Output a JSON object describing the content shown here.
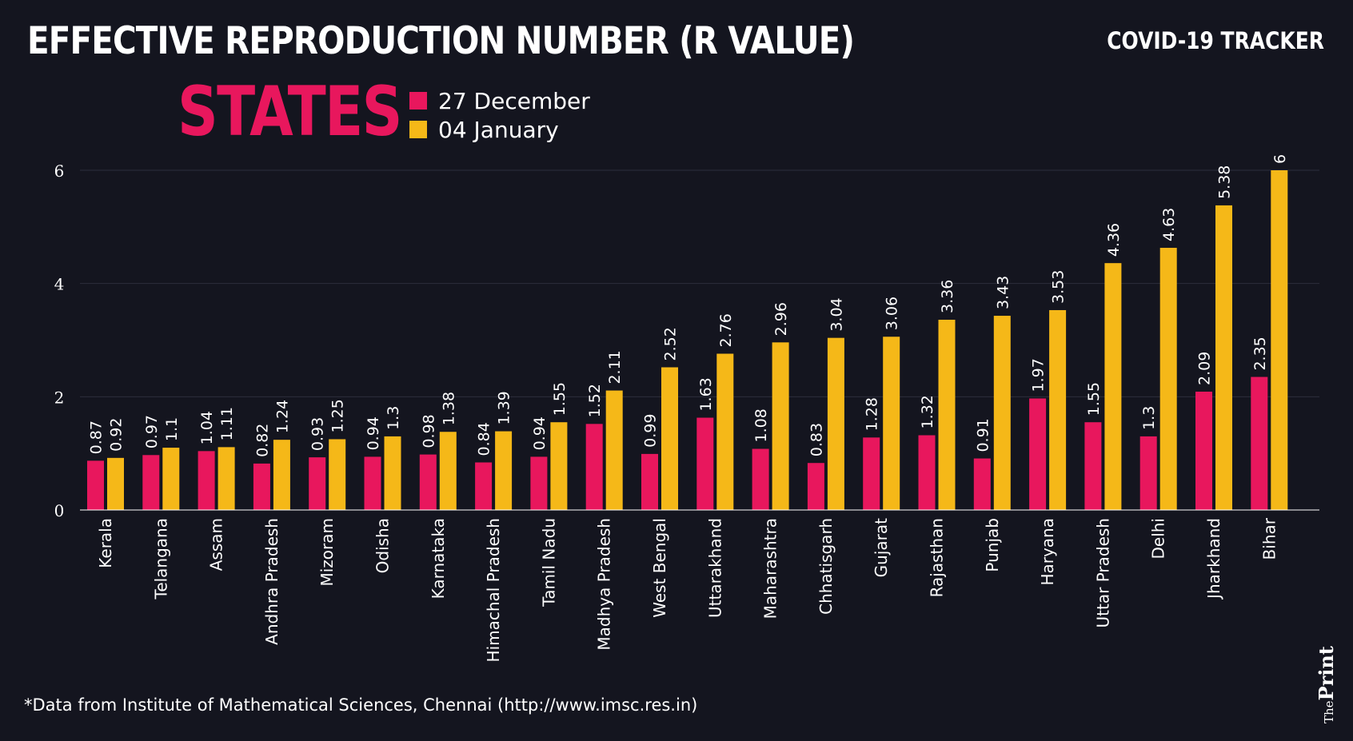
{
  "header": {
    "title": "EFFECTIVE REPRODUCTION NUMBER (R VALUE)",
    "tracker": "COVID-19 TRACKER",
    "subtitle": "STATES"
  },
  "legend": {
    "items": [
      {
        "label": "27 December",
        "color": "#e8175d"
      },
      {
        "label": "04 January",
        "color": "#f5b818"
      }
    ]
  },
  "footer": {
    "source": "*Data from Institute of Mathematical Sciences, Chennai (http://www.imsc.res.in)",
    "logo_the": "The",
    "logo_print": "Print"
  },
  "chart_data": {
    "type": "bar",
    "title": "EFFECTIVE REPRODUCTION NUMBER (R VALUE)",
    "xlabel": "",
    "ylabel": "",
    "ylim": [
      0,
      6
    ],
    "yticks": [
      0,
      2,
      4,
      6
    ],
    "grid": true,
    "legend_position": "top-left",
    "categories": [
      "Kerala",
      "Telangana",
      "Assam",
      "Andhra Pradesh",
      "Mizoram",
      "Odisha",
      "Karnataka",
      "Himachal Pradesh",
      "Tamil Nadu",
      "Madhya Pradesh",
      "West Bengal",
      "Uttarakhand",
      "Maharashtra",
      "Chhatisgarh",
      "Gujarat",
      "Rajasthan",
      "Punjab",
      "Haryana",
      "Uttar Pradesh",
      "Delhi",
      "Jharkhand",
      "Bihar"
    ],
    "series": [
      {
        "name": "27 December",
        "color": "#e8175d",
        "values": [
          0.87,
          0.97,
          1.04,
          0.82,
          0.93,
          0.94,
          0.98,
          0.84,
          0.94,
          1.52,
          0.99,
          1.63,
          1.08,
          0.83,
          1.28,
          1.32,
          0.91,
          1.97,
          1.55,
          1.3,
          2.09,
          2.35
        ]
      },
      {
        "name": "04 January",
        "color": "#f5b818",
        "values": [
          0.92,
          1.1,
          1.11,
          1.24,
          1.25,
          1.3,
          1.38,
          1.39,
          1.55,
          2.11,
          2.52,
          2.76,
          2.96,
          3.04,
          3.06,
          3.36,
          3.43,
          3.53,
          4.36,
          4.63,
          5.38,
          6
        ]
      }
    ]
  }
}
